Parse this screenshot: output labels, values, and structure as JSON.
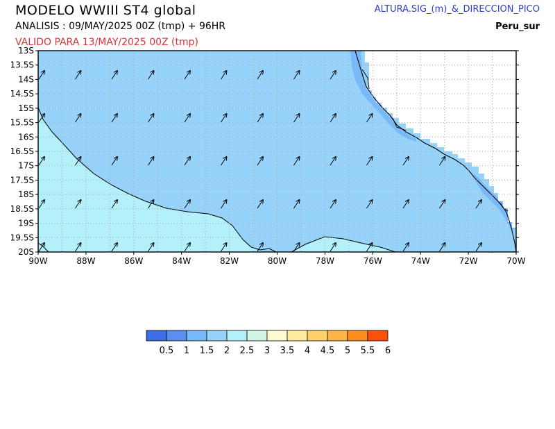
{
  "header": {
    "title": "MODELO  WWIII  ST4  global",
    "analysis": "ANALISIS : 09/MAY/2025 00Z   (tmp)  + 96HR",
    "valid": "VALIDO PARA   13/MAY/2025 00Z   (tmp)",
    "variable": "ALTURA.SIG_(m)_&_DIRECCION_PICO",
    "region": "Peru_sur"
  },
  "map": {
    "lon_labels": [
      "90W",
      "88W",
      "86W",
      "84W",
      "82W",
      "80W",
      "78W",
      "76W",
      "74W",
      "72W",
      "70W"
    ],
    "lat_labels": [
      "13S",
      "13.5S",
      "14S",
      "14.5S",
      "15S",
      "15.5S",
      "16S",
      "16.5S",
      "17S",
      "17.5S",
      "18S",
      "18.5S",
      "19S",
      "19.5S",
      "20S"
    ],
    "colors": {
      "land": "#ffffff",
      "band_1_5": "#96d2fa",
      "band_2": "#b4f0fa",
      "band_1": "#78b9fa",
      "coastline": "#000000",
      "grid": "#a0a0a0",
      "arrow": "#000000"
    },
    "wave_direction": "north-east"
  },
  "colorbar": {
    "labels": [
      "0.5",
      "1",
      "1.5",
      "2",
      "2.5",
      "3",
      "3.5",
      "4",
      "4.5",
      "5",
      "5.5",
      "6"
    ],
    "colors": [
      "#3c6ee6",
      "#5a8ff0",
      "#78b9fa",
      "#96d2fa",
      "#b4f0fa",
      "#d2f5e6",
      "#fffad2",
      "#ffeb9b",
      "#ffd269",
      "#ffb446",
      "#ff8c1e",
      "#ff500a"
    ]
  }
}
